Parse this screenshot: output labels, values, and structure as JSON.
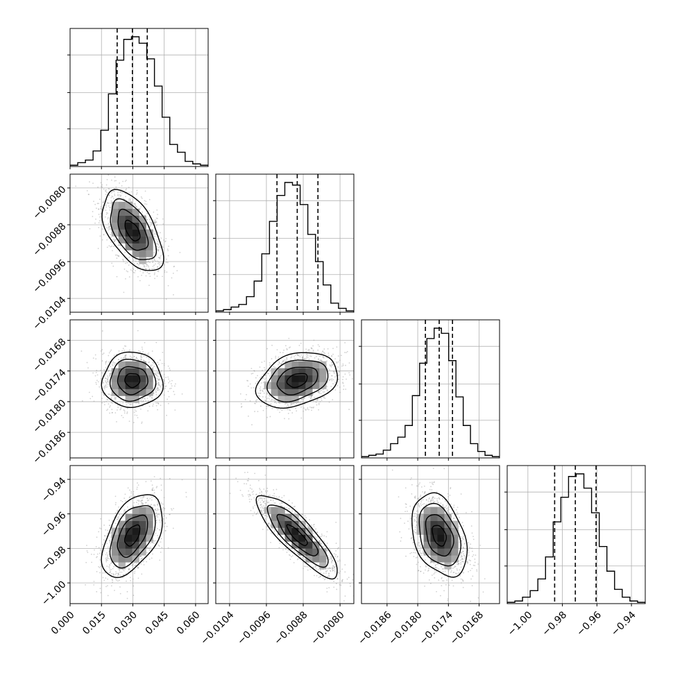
{
  "chart_data": {
    "type": "corner",
    "parameters": [
      {
        "index": 0,
        "range": [
          0.0,
          0.066
        ],
        "ticks": [
          0.0,
          0.015,
          0.03,
          0.045,
          0.06
        ],
        "tick_labels": [
          "0.000",
          "0.015",
          "0.030",
          "0.045",
          "0.060"
        ],
        "quantiles": [
          0.0225,
          0.0298,
          0.0369
        ],
        "mean": 0.0298,
        "sd": 0.0072,
        "hist_counts": [
          1,
          3,
          5,
          12,
          28,
          56,
          82,
          98,
          100,
          95,
          83,
          62,
          38,
          17,
          11,
          4,
          2,
          1
        ]
      },
      {
        "index": 1,
        "range": [
          -0.0107,
          -0.0077
        ],
        "ticks": [
          -0.0104,
          -0.0096,
          -0.0088,
          -0.008
        ],
        "tick_labels": [
          "−0.0104",
          "−0.0096",
          "−0.0088",
          "−0.0080"
        ],
        "quantiles": [
          -0.00937,
          -0.00893,
          -0.00848
        ],
        "mean": -0.00893,
        "sd": 0.00044,
        "hist_counts": [
          1,
          2,
          4,
          6,
          12,
          24,
          45,
          70,
          90,
          100,
          98,
          83,
          60,
          39,
          21,
          7,
          3,
          1
        ]
      },
      {
        "index": 2,
        "range": [
          -0.0191,
          -0.0164
        ],
        "ticks": [
          -0.0186,
          -0.018,
          -0.0174,
          -0.0168
        ],
        "tick_labels": [
          "−0.0186",
          "−0.0180",
          "−0.0174",
          "−0.0168"
        ],
        "quantiles": [
          -0.01785,
          -0.01758,
          -0.01732
        ],
        "mean": -0.01758,
        "sd": 0.00027,
        "hist_counts": [
          1,
          2,
          3,
          6,
          11,
          16,
          25,
          48,
          73,
          92,
          100,
          96,
          75,
          47,
          25,
          11,
          5,
          2,
          1
        ]
      },
      {
        "index": 3,
        "range": [
          -1.012,
          -0.932
        ],
        "ticks": [
          -1.0,
          -0.98,
          -0.96,
          -0.94
        ],
        "tick_labels": [
          "−1.00",
          "−0.98",
          "−0.96",
          "−0.94"
        ],
        "quantiles": [
          -0.9845,
          -0.9725,
          -0.9605
        ],
        "mean": -0.9725,
        "sd": 0.012,
        "hist_counts": [
          1,
          2,
          5,
          10,
          19,
          36,
          63,
          82,
          98,
          100,
          89,
          70,
          44,
          25,
          11,
          5,
          2,
          1
        ]
      }
    ],
    "correlations": [
      {
        "pair": [
          1,
          0
        ],
        "rho": -0.55
      },
      {
        "pair": [
          2,
          0
        ],
        "rho": 0.0
      },
      {
        "pair": [
          2,
          1
        ],
        "rho": 0.3
      },
      {
        "pair": [
          3,
          0
        ],
        "rho": 0.5
      },
      {
        "pair": [
          3,
          1
        ],
        "rho": -0.85
      },
      {
        "pair": [
          3,
          2
        ],
        "rho": -0.35
      }
    ],
    "grid": true,
    "contour_levels_sigma": [
      0.5,
      1.0,
      1.5,
      2.0
    ],
    "quantile_line_style": "dashed",
    "colors": {
      "line": "#000000",
      "grid": "#b0b0b0",
      "samples": "#9a9a9a",
      "density_dark": "#1a1a1a"
    }
  }
}
